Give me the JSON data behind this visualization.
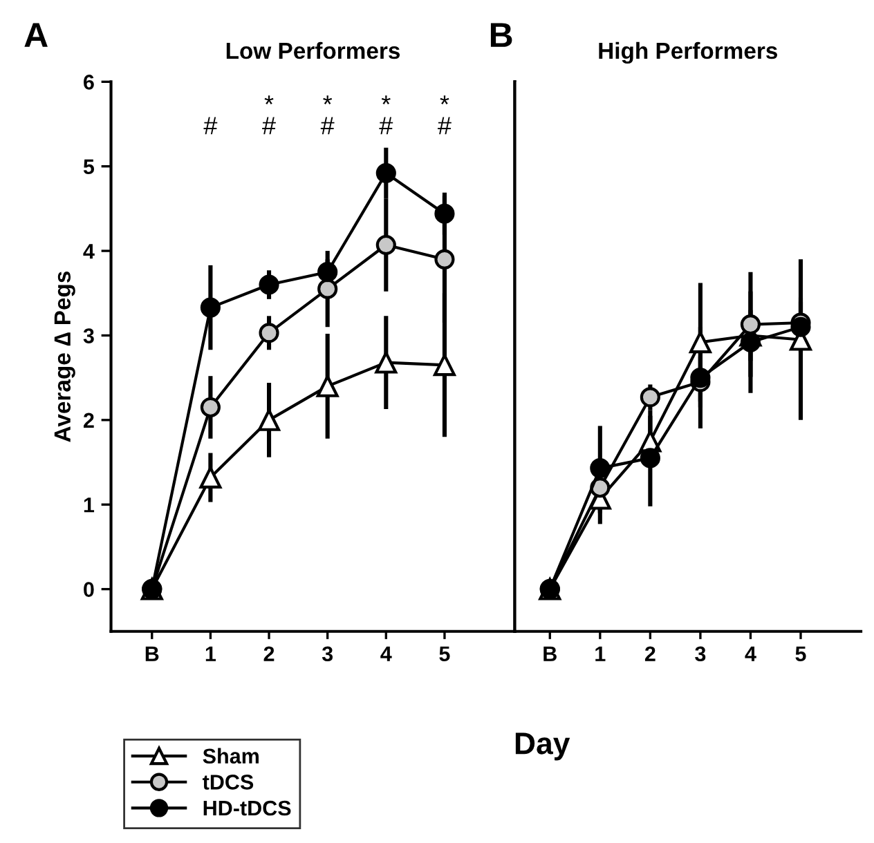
{
  "chart_data": [
    {
      "type": "line",
      "title": "Low Performers",
      "xlabel": "Day",
      "ylabel": "Average ∆ Pegs",
      "categories": [
        "B",
        "1",
        "2",
        "3",
        "4",
        "5"
      ],
      "series": [
        {
          "name": "Sham",
          "color": "#ffffff",
          "marker": "triangle",
          "values": [
            0,
            1.32,
            2.0,
            2.4,
            2.68,
            2.65
          ],
          "errors": [
            null,
            0.29,
            0.44,
            0.62,
            0.55,
            0.85
          ]
        },
        {
          "name": "tDCS",
          "color": "#c8c8c8",
          "marker": "circle",
          "values": [
            0,
            2.15,
            3.03,
            3.55,
            4.07,
            3.9
          ],
          "errors": [
            null,
            0.37,
            0.2,
            0.45,
            0.55,
            0.75
          ]
        },
        {
          "name": "HD-tDCS",
          "color": "#000000",
          "marker": "circle",
          "values": [
            0,
            3.33,
            3.6,
            3.75,
            4.92,
            4.44
          ],
          "errors": [
            null,
            0.5,
            0.17,
            0.15,
            0.3,
            0.25
          ]
        }
      ],
      "ylim": [
        -0.5,
        6
      ],
      "yticks": [
        0,
        1,
        2,
        3,
        4,
        5,
        6
      ],
      "legend": "bottom left",
      "annotations": [
        "A",
        "#",
        "*\n#",
        "*\n#",
        "*\n#",
        "*\n#"
      ]
    },
    {
      "type": "line",
      "title": "High Performers",
      "categories": [
        "B",
        "1",
        "2",
        "3",
        "4",
        "5"
      ],
      "series": [
        {
          "color": "#ffffff",
          "marker": "triangle",
          "values": [
            0,
            1.07,
            1.75,
            2.92,
            3.0,
            2.95
          ],
          "errors": [
            null,
            0.3,
            0.3,
            0.7,
            0.3,
            0.95
          ]
        },
        {
          "color": "#c8c8c8",
          "marker": "circle",
          "values": [
            0,
            1.2,
            2.27,
            2.45,
            3.13,
            3.15
          ],
          "errors": [
            null,
            0.3,
            0.15,
            0.3,
            0.62,
            0.3
          ]
        },
        {
          "color": "#000000",
          "marker": "circle",
          "values": [
            0,
            1.43,
            1.55,
            2.5,
            2.92,
            3.1
          ],
          "errors": [
            null,
            0.5,
            0.57,
            0.6,
            0.6,
            0.3
          ]
        }
      ],
      "ylim": [
        -0.5,
        6
      ],
      "tick_labels": "x",
      "annotations": [
        "B"
      ]
    }
  ]
}
